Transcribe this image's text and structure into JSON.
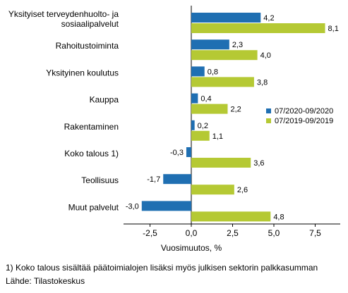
{
  "chart_data": {
    "type": "bar",
    "orientation": "horizontal",
    "categories": [
      [
        "Yksityiset terveydenhuolto- ja",
        "sosiaalipalvelut"
      ],
      [
        "Rahoitustoiminta"
      ],
      [
        "Yksityinen koulutus"
      ],
      [
        "Kauppa"
      ],
      [
        "Rakentaminen"
      ],
      [
        "Koko talous 1)"
      ],
      [
        "Teollisuus"
      ],
      [
        "Muut palvelut"
      ]
    ],
    "series": [
      {
        "name": "07/2020-09/2020",
        "color": "#1f6fb2",
        "values": [
          4.2,
          2.3,
          0.8,
          0.4,
          0.2,
          -0.3,
          -1.7,
          -3.0
        ],
        "labels": [
          "4,2",
          "2,3",
          "0,8",
          "0,4",
          "0,2",
          "-0,3",
          "-1,7",
          "-3,0"
        ]
      },
      {
        "name": "07/2019-09/2019",
        "color": "#b5c934",
        "values": [
          8.1,
          4.0,
          3.8,
          2.2,
          1.1,
          3.6,
          2.6,
          4.8
        ],
        "labels": [
          "8,1",
          "4,0",
          "3,8",
          "2,2",
          "1,1",
          "3,6",
          "2,6",
          "4,8"
        ]
      }
    ],
    "xlabel": "Vuosimuutos, %",
    "xlim": [
      -4.0,
      8.8
    ],
    "xticks": [
      -2.5,
      0.0,
      2.5,
      5.0,
      7.5
    ],
    "xtick_labels": [
      "-2,5",
      "0,0",
      "2,5",
      "5,0",
      "7,5"
    ],
    "grid": false,
    "legend_position": "right"
  },
  "footnotes": {
    "note": "1) Koko talous sisältää päätoimialojen lisäksi myös julkisen sektorin palkkasumman",
    "source": "Lähde: Tilastokeskus"
  }
}
